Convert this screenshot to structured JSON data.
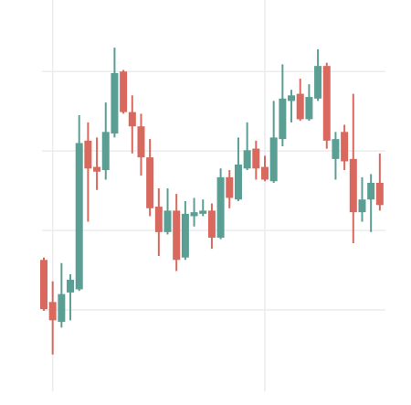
{
  "chart_data": {
    "type": "candlestick",
    "categories": [
      null,
      null,
      null,
      null,
      null,
      null,
      null,
      null,
      null,
      null,
      null,
      null,
      null,
      null,
      null,
      null,
      null,
      null,
      null,
      null,
      null,
      null,
      null,
      null,
      null,
      null,
      null,
      null,
      null,
      null,
      null,
      null,
      null,
      null,
      null,
      null,
      null,
      null,
      null
    ],
    "open": [
      1.63,
      1.1,
      0.85,
      1.22,
      1.26,
      3.13,
      2.8,
      2.76,
      3.22,
      4.0,
      3.49,
      3.31,
      2.92,
      2.3,
      1.98,
      2.25,
      1.66,
      2.18,
      2.21,
      2.25,
      1.91,
      2.67,
      2.39,
      2.78,
      3.03,
      2.8,
      2.62,
      3.15,
      3.63,
      3.72,
      3.4,
      3.66,
      4.07,
      2.9,
      3.24,
      2.9,
      2.23,
      2.39,
      2.6
    ],
    "high": [
      1.66,
      1.36,
      1.59,
      1.45,
      3.45,
      3.36,
      3.17,
      3.61,
      4.3,
      4.02,
      3.7,
      3.47,
      3.15,
      2.53,
      2.53,
      2.46,
      2.37,
      2.41,
      2.39,
      2.34,
      2.78,
      2.76,
      3.17,
      3.36,
      3.13,
      2.94,
      3.63,
      4.09,
      3.77,
      3.91,
      3.84,
      4.28,
      4.11,
      3.24,
      3.33,
      3.72,
      2.67,
      2.71,
      2.97
    ],
    "low": [
      0.99,
      0.44,
      0.78,
      0.87,
      1.24,
      2.11,
      2.51,
      2.64,
      3.17,
      3.47,
      2.97,
      2.69,
      2.18,
      1.68,
      1.95,
      1.49,
      1.63,
      2.05,
      2.18,
      1.77,
      1.89,
      2.28,
      2.37,
      2.76,
      2.64,
      2.62,
      2.6,
      3.06,
      3.36,
      3.38,
      3.38,
      3.63,
      3.03,
      2.64,
      2.76,
      1.84,
      2.11,
      1.98,
      2.25
    ],
    "close": [
      1.01,
      0.87,
      1.2,
      1.38,
      3.1,
      2.78,
      2.74,
      3.24,
      3.98,
      3.49,
      3.31,
      2.92,
      2.28,
      1.98,
      2.25,
      1.63,
      2.21,
      2.23,
      2.25,
      1.91,
      2.67,
      2.41,
      2.83,
      3.01,
      2.78,
      2.64,
      3.17,
      3.66,
      3.7,
      3.4,
      3.68,
      4.07,
      3.13,
      3.15,
      2.87,
      2.23,
      2.39,
      2.6,
      2.32
    ],
    "up_color": "#5b9f94",
    "down_color": "#d9695e",
    "ylim": [
      0,
      4.9
    ],
    "yticks": [
      1,
      2,
      3,
      4
    ],
    "xticks": [
      1,
      25
    ],
    "grid": true
  }
}
